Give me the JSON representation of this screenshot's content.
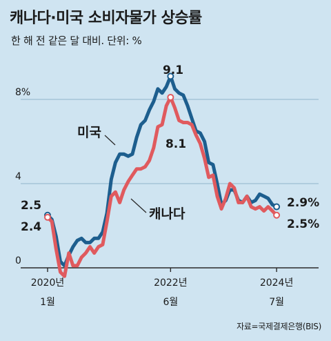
{
  "title": "캐나다·미국 소비자물가 상승률",
  "subtitle": "한 해 전 같은 달 대비. 단위: %",
  "source": "자료=국제결제은행(BIS)",
  "colors": {
    "background": "#cfe4f1",
    "us": "#1d5e8e",
    "canada": "#e05a5e",
    "grid": "#8fb4cc",
    "axis": "#2a2a2a"
  },
  "chart_data": {
    "type": "line",
    "ylim": [
      0,
      10
    ],
    "yticks": [
      {
        "value": 0,
        "label": "0"
      },
      {
        "value": 4,
        "label": "4"
      },
      {
        "value": 8,
        "label": "8%"
      }
    ],
    "xticks": [
      {
        "index": 0,
        "year": "2020년",
        "month": "1월"
      },
      {
        "index": 29,
        "year": "2022년",
        "month": "6월"
      },
      {
        "index": 54,
        "year": "2024년",
        "month": "7월"
      }
    ],
    "series": [
      {
        "name": "미국",
        "values": [
          2.5,
          2.3,
          1.5,
          0.3,
          0.1,
          0.6,
          1.0,
          1.3,
          1.4,
          1.2,
          1.2,
          1.4,
          1.4,
          1.7,
          2.6,
          4.2,
          5.0,
          5.4,
          5.4,
          5.3,
          5.4,
          6.2,
          6.8,
          7.0,
          7.5,
          7.9,
          8.5,
          8.3,
          8.6,
          9.1,
          8.5,
          8.3,
          8.2,
          7.7,
          7.1,
          6.5,
          6.4,
          6.0,
          5.0,
          4.9,
          4.0,
          3.0,
          3.2,
          3.7,
          3.7,
          3.2,
          3.1,
          3.4,
          3.1,
          3.2,
          3.5,
          3.4,
          3.3,
          3.0,
          2.9
        ]
      },
      {
        "name": "캐나다",
        "values": [
          2.4,
          2.2,
          0.9,
          -0.2,
          -0.4,
          0.7,
          0.1,
          0.1,
          0.5,
          0.7,
          1.0,
          0.7,
          1.0,
          1.1,
          2.2,
          3.4,
          3.6,
          3.1,
          3.7,
          4.1,
          4.4,
          4.7,
          4.7,
          4.8,
          5.1,
          5.7,
          6.7,
          6.8,
          7.7,
          8.1,
          7.6,
          7.0,
          6.9,
          6.9,
          6.8,
          6.3,
          5.9,
          5.2,
          4.3,
          4.4,
          3.4,
          2.8,
          3.3,
          4.0,
          3.8,
          3.1,
          3.1,
          3.4,
          2.9,
          2.8,
          2.9,
          2.7,
          2.9,
          2.7,
          2.5
        ]
      }
    ],
    "annotations": {
      "us_peak": "9.1",
      "canada_peak": "8.1",
      "us_start": "2.5",
      "canada_start": "2.4",
      "us_end": "2.9%",
      "canada_end": "2.5%",
      "us_label": "미국",
      "canada_label": "캐나다"
    }
  }
}
